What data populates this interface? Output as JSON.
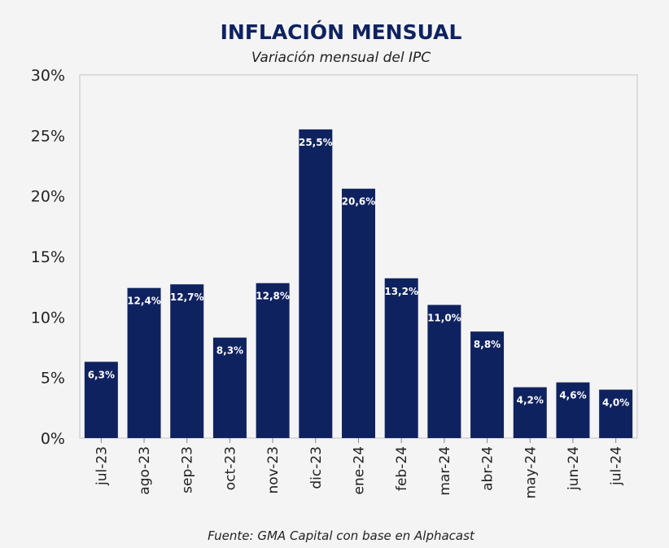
{
  "chart_data": {
    "type": "bar",
    "title": "INFLACIÓN MENSUAL",
    "subtitle": "Variación mensual del IPC",
    "source": "Fuente: GMA Capital con base en Alphacast",
    "xlabel": "",
    "ylabel": "",
    "ylim": [
      0,
      30
    ],
    "yticks": [
      0,
      5,
      10,
      15,
      20,
      25,
      30
    ],
    "ytick_labels": [
      "0%",
      "5%",
      "10%",
      "15%",
      "20%",
      "25%",
      "30%"
    ],
    "grid": false,
    "categories": [
      "jul-23",
      "ago-23",
      "sep-23",
      "oct-23",
      "nov-23",
      "dic-23",
      "ene-24",
      "feb-24",
      "mar-24",
      "abr-24",
      "may-24",
      "jun-24",
      "jul-24"
    ],
    "values": [
      6.3,
      12.4,
      12.7,
      8.3,
      12.8,
      25.5,
      20.6,
      13.2,
      11.0,
      8.8,
      4.2,
      4.6,
      4.0
    ],
    "data_labels": [
      "6,3%",
      "12,4%",
      "12,7%",
      "8,3%",
      "12,8%",
      "25,5%",
      "20,6%",
      "13,2%",
      "11,0%",
      "8,8%",
      "4,2%",
      "4,6%",
      "4,0%"
    ],
    "bar_color": "#0f2260",
    "title_color": "#0f2260"
  }
}
